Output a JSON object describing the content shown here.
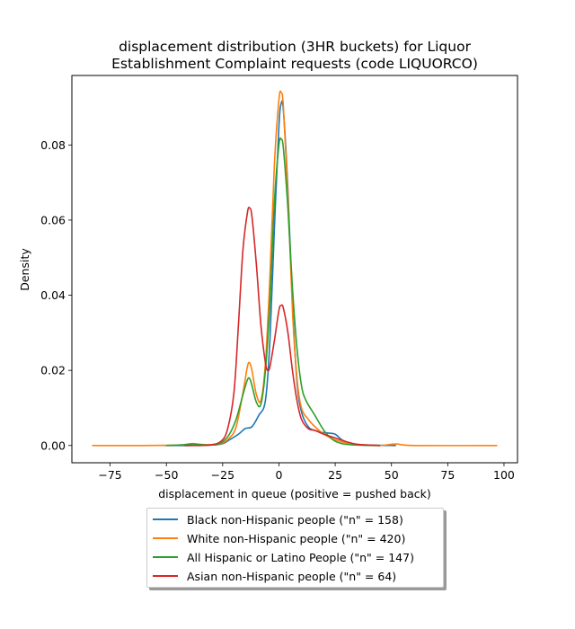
{
  "chart_data": {
    "type": "line",
    "title_lines": [
      "displacement distribution (3HR buckets) for Liquor",
      "Establishment Complaint requests (code LIQUORCO)"
    ],
    "xlabel": "displacement in queue (positive = pushed back)",
    "ylabel": "Density",
    "xlim": [
      -92,
      106
    ],
    "ylim": [
      -0.0046,
      0.0985
    ],
    "x_ticks": [
      -75,
      -50,
      -25,
      0,
      25,
      50,
      75,
      100
    ],
    "x_tick_labels": [
      "−75",
      "−50",
      "−25",
      "0",
      "25",
      "50",
      "75",
      "100"
    ],
    "y_ticks": [
      0.0,
      0.02,
      0.04,
      0.06,
      0.08
    ],
    "y_tick_labels": [
      "0.00",
      "0.02",
      "0.04",
      "0.06",
      "0.08"
    ],
    "grid": false,
    "legend_position": "below",
    "series": [
      {
        "name": "Black non-Hispanic people (\"n\" = 158)",
        "color": "#1f77b4",
        "x": [
          -51,
          -40,
          -30,
          -25,
          -22,
          -18,
          -15,
          -12,
          -9,
          -6,
          -4,
          -2,
          0,
          1,
          2,
          4,
          6,
          8,
          10,
          13,
          16,
          19,
          22,
          25,
          28,
          32,
          40,
          52
        ],
        "y": [
          0.0,
          0.0,
          0.0001,
          0.0005,
          0.0015,
          0.003,
          0.0045,
          0.005,
          0.008,
          0.012,
          0.028,
          0.058,
          0.085,
          0.091,
          0.089,
          0.068,
          0.038,
          0.017,
          0.009,
          0.005,
          0.004,
          0.0035,
          0.0033,
          0.003,
          0.0015,
          0.0005,
          0.0001,
          0.0
        ]
      },
      {
        "name": "White non-Hispanic people (\"n\" = 420)",
        "color": "#ff7f0e",
        "x": [
          -83,
          -60,
          -45,
          -40,
          -38,
          -35,
          -30,
          -26,
          -22,
          -19,
          -16,
          -14,
          -13,
          -12,
          -10,
          -8,
          -6,
          -4,
          -2,
          0,
          1,
          2,
          4,
          6,
          8,
          10,
          13,
          16,
          20,
          25,
          30,
          35,
          45,
          52,
          60,
          97
        ],
        "y": [
          0.0,
          0.0,
          0.0001,
          0.0004,
          0.0005,
          0.0003,
          0.0002,
          0.0004,
          0.002,
          0.005,
          0.014,
          0.021,
          0.022,
          0.02,
          0.0135,
          0.012,
          0.022,
          0.045,
          0.075,
          0.092,
          0.094,
          0.09,
          0.066,
          0.036,
          0.018,
          0.01,
          0.007,
          0.005,
          0.003,
          0.0015,
          0.0007,
          0.0002,
          0.0,
          0.0004,
          0.0,
          0.0
        ]
      },
      {
        "name": "All Hispanic or Latino People (\"n\" = 147)",
        "color": "#2ca02c",
        "x": [
          -50,
          -42,
          -38,
          -34,
          -28,
          -25,
          -22,
          -19,
          -16,
          -14,
          -13,
          -12,
          -10,
          -8,
          -6,
          -4,
          -2,
          0,
          1,
          2,
          4,
          6,
          8,
          10,
          12,
          16,
          20,
          24,
          28,
          35,
          45
        ],
        "y": [
          0.0,
          0.0002,
          0.0004,
          0.0002,
          0.0002,
          0.001,
          0.003,
          0.007,
          0.0135,
          0.0175,
          0.0178,
          0.016,
          0.0115,
          0.011,
          0.02,
          0.038,
          0.065,
          0.08,
          0.0815,
          0.079,
          0.063,
          0.042,
          0.026,
          0.016,
          0.012,
          0.008,
          0.004,
          0.0015,
          0.0005,
          0.0001,
          0.0
        ]
      },
      {
        "name": "Asian non-Hispanic people (\"n\" = 64)",
        "color": "#d62728",
        "x": [
          -42,
          -35,
          -30,
          -26,
          -23,
          -20,
          -18,
          -16,
          -14,
          -13,
          -12,
          -10,
          -8,
          -6,
          -5,
          -4,
          -2,
          0,
          1,
          2,
          4,
          6,
          8,
          10,
          13,
          16,
          20,
          25,
          30,
          35,
          45
        ],
        "y": [
          0.0,
          0.0,
          0.0002,
          0.001,
          0.004,
          0.014,
          0.032,
          0.052,
          0.062,
          0.0632,
          0.061,
          0.048,
          0.032,
          0.022,
          0.02,
          0.021,
          0.028,
          0.036,
          0.0373,
          0.0365,
          0.03,
          0.02,
          0.012,
          0.007,
          0.0045,
          0.004,
          0.003,
          0.002,
          0.001,
          0.0003,
          0.0
        ]
      }
    ]
  }
}
